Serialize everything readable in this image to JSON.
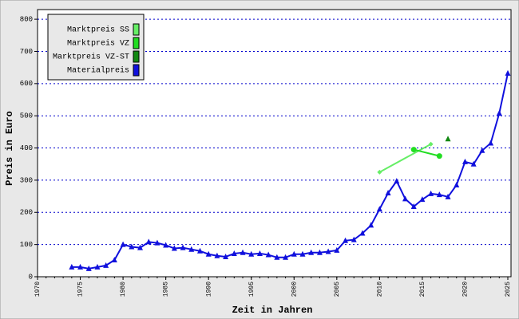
{
  "chart_data": {
    "type": "line",
    "x_label": "Zeit in Jahren",
    "y_label": "Preis in Euro",
    "xlim": [
      1970,
      2025
    ],
    "ylim": [
      0,
      830
    ],
    "xticks": [
      1970,
      1975,
      1980,
      1985,
      1990,
      1995,
      2000,
      2005,
      2010,
      2015,
      2020,
      2025
    ],
    "yticks": [
      0,
      100,
      200,
      300,
      400,
      500,
      600,
      700,
      800
    ],
    "grid": true,
    "legend": "upper left",
    "series": [
      {
        "name": "Marktpreis SS",
        "color": "#66ee66",
        "marker": "diamond",
        "x": [
          2010,
          2016
        ],
        "values": [
          325,
          412
        ]
      },
      {
        "name": "Marktpreis VZ",
        "color": "#22dd22",
        "marker": "circle",
        "x": [
          2014,
          2017
        ],
        "values": [
          395,
          375
        ]
      },
      {
        "name": "Marktpreis VZ-ST",
        "color": "#118811",
        "marker": "triangle",
        "x": [
          2018
        ],
        "values": [
          428
        ]
      },
      {
        "name": "Materialpreis",
        "color": "#1010dd",
        "marker": "triangle",
        "x": [
          1974,
          1975,
          1976,
          1977,
          1978,
          1979,
          1980,
          1981,
          1982,
          1983,
          1984,
          1985,
          1986,
          1987,
          1988,
          1989,
          1990,
          1991,
          1992,
          1993,
          1994,
          1995,
          1996,
          1997,
          1998,
          1999,
          2000,
          2001,
          2002,
          2003,
          2004,
          2005,
          2006,
          2007,
          2008,
          2009,
          2010,
          2011,
          2012,
          2013,
          2014,
          2015,
          2016,
          2017,
          2018,
          2019,
          2020,
          2021,
          2022,
          2023,
          2024,
          2025
        ],
        "values": [
          30,
          30,
          25,
          30,
          35,
          52,
          100,
          93,
          90,
          108,
          105,
          98,
          88,
          90,
          85,
          80,
          70,
          65,
          62,
          72,
          75,
          70,
          72,
          68,
          60,
          60,
          70,
          70,
          75,
          75,
          78,
          82,
          112,
          115,
          135,
          160,
          210,
          260,
          297,
          242,
          218,
          240,
          258,
          255,
          248,
          285,
          357,
          350,
          392,
          415,
          508,
          632
        ]
      }
    ]
  }
}
